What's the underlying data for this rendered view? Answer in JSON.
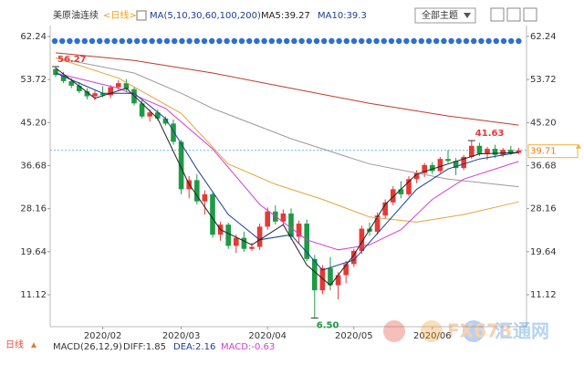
{
  "header": {
    "symbol": "美原油连续",
    "period": "<日线>",
    "ma_params": "MA(5,10,30,60,100,200)",
    "ma5": "MA5:39.27",
    "ma10": "MA10:39.3",
    "theme_menu": "全部主题"
  },
  "chart_data": {
    "type": "candlestick",
    "categories": [
      null,
      null,
      null,
      null,
      null,
      null,
      "2020/02",
      null,
      null,
      null,
      null,
      null,
      null,
      null,
      null,
      null,
      "2020/03",
      null,
      null,
      null,
      null,
      null,
      null,
      null,
      null,
      null,
      null,
      "2020/04",
      null,
      null,
      null,
      null,
      null,
      null,
      null,
      null,
      null,
      null,
      "2020/05",
      null,
      null,
      null,
      null,
      null,
      null,
      null,
      null,
      null,
      "2020/06",
      null,
      null,
      null,
      null,
      null,
      null,
      null,
      null,
      null,
      null,
      null
    ],
    "open": [
      55.8,
      54.6,
      53.4,
      52.5,
      51.4,
      50.4,
      51.0,
      50.6,
      52.2,
      53.0,
      51.8,
      49.0,
      46.4,
      47.2,
      46.0,
      45.0,
      41.4,
      32.0,
      33.8,
      29.6,
      31.0,
      23.0,
      25.0,
      20.8,
      22.4,
      20.2,
      20.6,
      24.6,
      27.6,
      25.6,
      27.2,
      22.6,
      25.2,
      18.2,
      12.0,
      16.4,
      13.0,
      15.0,
      17.2,
      19.8,
      24.2,
      23.6,
      26.8,
      29.4,
      32.0,
      31.0,
      34.0,
      35.2,
      36.8,
      35.6,
      38.0,
      37.6,
      36.2,
      38.4,
      40.6,
      39.0,
      40.0,
      38.8,
      39.8,
      39.2
    ],
    "high": [
      56.27,
      55.2,
      54.0,
      53.2,
      52.0,
      51.5,
      52.4,
      52.6,
      53.6,
      53.8,
      52.2,
      49.6,
      47.8,
      47.8,
      46.4,
      45.8,
      41.8,
      34.6,
      35.0,
      31.8,
      31.4,
      25.6,
      25.4,
      23.0,
      23.6,
      21.4,
      25.2,
      28.4,
      28.8,
      28.0,
      28.2,
      25.8,
      26.0,
      19.0,
      17.0,
      18.6,
      15.6,
      17.8,
      20.2,
      24.8,
      25.4,
      27.4,
      30.0,
      32.6,
      33.6,
      34.6,
      35.8,
      37.2,
      37.4,
      38.4,
      39.8,
      38.2,
      38.8,
      41.63,
      41.2,
      40.4,
      40.8,
      40.2,
      40.6,
      40.2
    ],
    "low": [
      54.2,
      53.0,
      52.0,
      51.0,
      49.8,
      49.6,
      50.2,
      50.0,
      51.6,
      51.4,
      48.6,
      46.0,
      45.4,
      45.6,
      44.6,
      40.8,
      31.0,
      30.2,
      29.0,
      27.0,
      22.4,
      21.8,
      20.2,
      19.4,
      19.6,
      19.8,
      20.0,
      24.0,
      25.0,
      24.8,
      22.0,
      21.4,
      17.8,
      6.5,
      11.2,
      12.0,
      10.2,
      13.4,
      16.6,
      19.2,
      22.8,
      23.0,
      26.2,
      28.8,
      30.2,
      30.6,
      33.2,
      34.4,
      35.0,
      35.2,
      37.2,
      34.8,
      35.8,
      38.0,
      38.6,
      37.8,
      38.2,
      38.4,
      38.8,
      38.9
    ],
    "close": [
      54.6,
      53.4,
      52.5,
      51.4,
      50.4,
      51.0,
      50.6,
      52.2,
      53.0,
      51.8,
      49.0,
      46.4,
      47.2,
      46.0,
      45.0,
      41.4,
      32.0,
      33.8,
      29.6,
      31.0,
      23.0,
      25.0,
      20.8,
      22.4,
      20.2,
      20.6,
      24.6,
      27.6,
      25.6,
      27.2,
      22.6,
      25.2,
      18.2,
      12.0,
      16.4,
      13.0,
      15.0,
      17.2,
      19.8,
      24.2,
      23.6,
      26.8,
      29.4,
      32.0,
      31.0,
      34.0,
      35.2,
      36.8,
      35.6,
      38.0,
      37.6,
      36.2,
      38.4,
      40.6,
      39.0,
      40.0,
      38.8,
      39.8,
      39.2,
      39.71
    ],
    "up_color": "#e53935",
    "down_color": "#1e9a45",
    "ma_lines": [
      {
        "color": "#c0392b",
        "x": [
          0,
          10,
          20,
          30,
          40,
          50,
          59
        ],
        "values": [
          59,
          57.5,
          55,
          52,
          49,
          46.5,
          44.7
        ]
      },
      {
        "color": "#9a9a9a",
        "x": [
          0,
          10,
          16,
          20,
          30,
          40,
          50,
          59
        ],
        "values": [
          58,
          55,
          51,
          48,
          42,
          37,
          34,
          32.5
        ]
      },
      {
        "color": "#e8a33d",
        "x": [
          0,
          8,
          16,
          22,
          28,
          34,
          40,
          46,
          52,
          59
        ],
        "values": [
          58,
          54,
          47,
          37,
          33,
          30,
          26.5,
          25.5,
          27,
          29.5
        ]
      },
      {
        "color": "#d63bd6",
        "x": [
          0,
          8,
          14,
          20,
          26,
          32,
          36,
          40,
          44,
          48,
          52,
          59
        ],
        "values": [
          55,
          52,
          48,
          40,
          29,
          22,
          20,
          21,
          24,
          30,
          34,
          37.5
        ]
      },
      {
        "color": "#1c3f94",
        "x": [
          0,
          6,
          10,
          14,
          18,
          22,
          26,
          30,
          34,
          38,
          42,
          46,
          50,
          54,
          59
        ],
        "values": [
          55,
          51,
          51,
          46,
          36,
          27,
          22,
          23,
          16,
          18,
          25,
          32,
          36,
          38,
          39.3
        ]
      },
      {
        "color": "#222222",
        "x": [
          0,
          5,
          9,
          13,
          17,
          21,
          25,
          29,
          32,
          35,
          38,
          42,
          46,
          50,
          54,
          59
        ],
        "values": [
          56,
          50,
          52,
          46,
          33,
          24,
          21,
          25,
          17,
          13,
          19,
          29,
          35,
          37,
          39,
          39.27
        ]
      }
    ],
    "annotations": [
      {
        "x": 0,
        "value": 56.27,
        "color": "#e53935"
      },
      {
        "x": 53,
        "value": 41.63,
        "color": "#e53935"
      },
      {
        "x": 33,
        "value": 6.5,
        "label": "6.50",
        "color": "#1e9a45"
      }
    ],
    "last_price": 39.71,
    "ylim": [
      4.8,
      64.4
    ],
    "yticks": [
      62.24,
      53.72,
      {
        "value": 45.2,
        "label": "45.20"
      },
      36.68,
      28.16,
      19.64,
      11.12
    ],
    "grid": false
  },
  "footer": {
    "period": "日线",
    "macd_params": "MACD(26,12,9)",
    "diff": "DIFF:1.85",
    "dea": "DEA:2.16",
    "macd": "MACD:-0.63"
  },
  "watermark": {
    "code": "FX678",
    "name": "汇通网"
  }
}
